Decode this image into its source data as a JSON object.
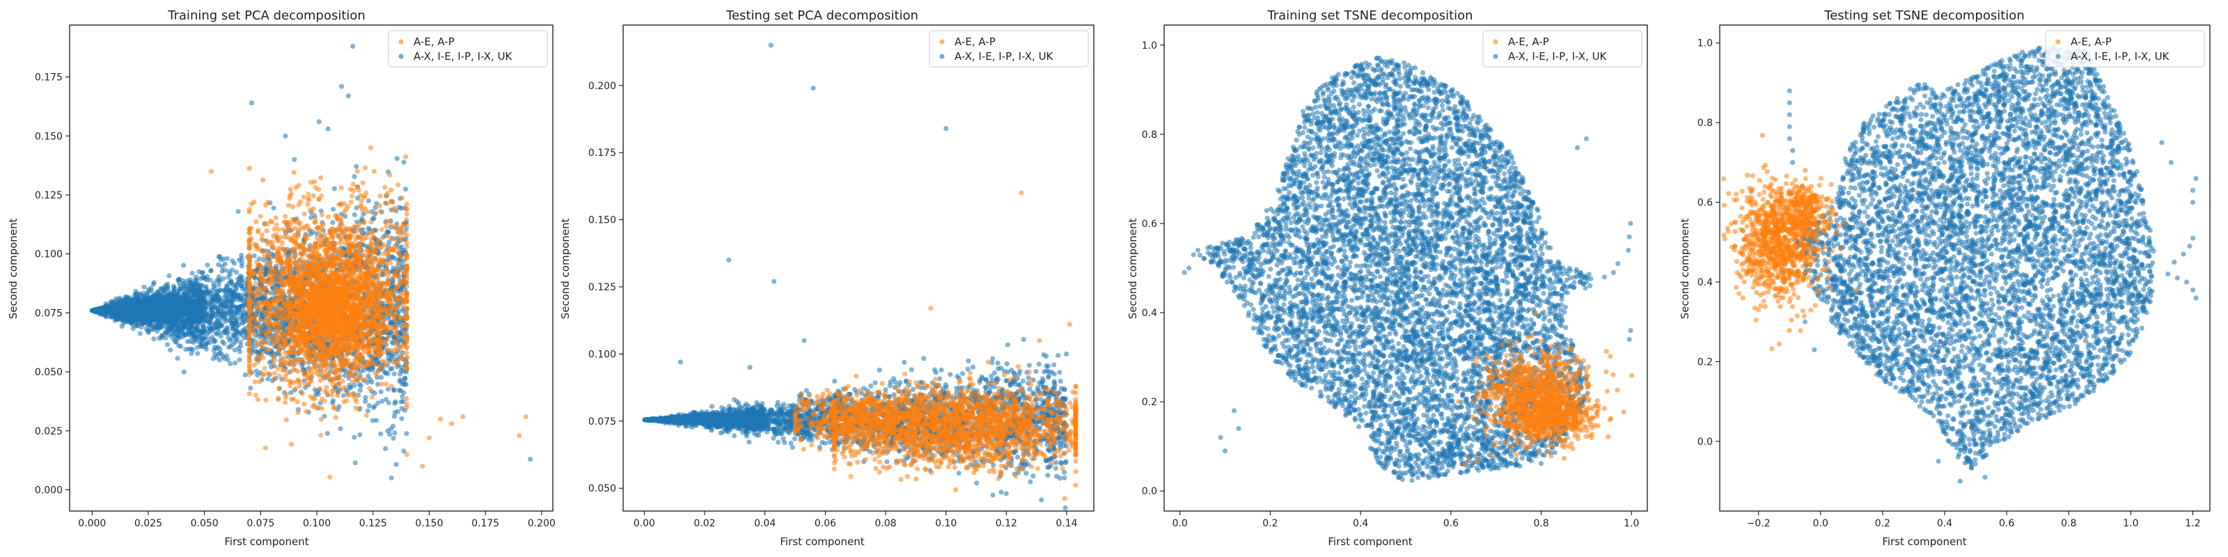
{
  "colors": {
    "orange": "#ff7f0e",
    "blue": "#1f77b4"
  },
  "chart_data": [
    {
      "type": "scatter",
      "title": "Training set PCA decomposition",
      "xlabel": "First component",
      "ylabel": "Second component",
      "xlim": [
        -0.01,
        0.205
      ],
      "ylim": [
        -0.009,
        0.197
      ],
      "xticks": [
        0.0,
        0.025,
        0.05,
        0.075,
        0.1,
        0.125,
        0.15,
        0.175,
        0.2
      ],
      "xtick_labels": [
        "0.000",
        "0.025",
        "0.050",
        "0.075",
        "0.100",
        "0.125",
        "0.150",
        "0.175",
        "0.200"
      ],
      "yticks": [
        0.0,
        0.025,
        0.05,
        0.075,
        0.1,
        0.125,
        0.15,
        0.175
      ],
      "ytick_labels": [
        "0.000",
        "0.025",
        "0.050",
        "0.075",
        "0.100",
        "0.125",
        "0.150",
        "0.175"
      ],
      "grid": false,
      "legend": "top-right",
      "series": [
        {
          "name": "A-E, A-P",
          "color": "#ff7f0e",
          "clusters": [
            {
              "shape": "rect",
              "cx": 0.105,
              "cy": 0.08,
              "rx": 0.035,
              "ry": 0.032,
              "n": 2400
            },
            {
              "shape": "rect",
              "cx": 0.108,
              "cy": 0.075,
              "rx": 0.02,
              "ry": 0.018,
              "n": 600
            }
          ],
          "points": [
            [
              0.155,
              0.03
            ],
            [
              0.16,
              0.028
            ],
            [
              0.165,
              0.031
            ],
            [
              0.15,
              0.022
            ],
            [
              0.193,
              0.031
            ],
            [
              0.19,
              0.023
            ],
            [
              0.147,
              0.01
            ],
            [
              0.14,
              0.015
            ],
            [
              0.053,
              0.135
            ],
            [
              0.124,
              0.145
            ],
            [
              0.118,
              0.135
            ],
            [
              0.072,
              0.122
            ]
          ]
        },
        {
          "name": "A-X, I-E, I-P, I-X, UK",
          "color": "#1f77b4",
          "clusters": [
            {
              "shape": "wedge",
              "x0": 0.0,
              "y0": 0.076,
              "x1": 0.14,
              "spread": 0.048,
              "n": 3200
            },
            {
              "shape": "wedge",
              "x0": 0.0,
              "y0": 0.076,
              "x1": 0.05,
              "spread": 0.016,
              "n": 900
            }
          ],
          "points": [
            [
              0.116,
              0.188
            ],
            [
              0.111,
              0.171
            ],
            [
              0.114,
              0.167
            ],
            [
              0.105,
              0.153
            ],
            [
              0.101,
              0.156
            ],
            [
              0.071,
              0.164
            ],
            [
              0.086,
              0.15
            ],
            [
              0.195,
              0.013
            ],
            [
              0.065,
              0.118
            ],
            [
              0.09,
              0.14
            ]
          ]
        }
      ]
    },
    {
      "type": "scatter",
      "title": "Testing set PCA decomposition",
      "xlabel": "First component",
      "ylabel": "Second component",
      "xlim": [
        -0.007,
        0.149
      ],
      "ylim": [
        0.0415,
        0.2225
      ],
      "xticks": [
        0.0,
        0.02,
        0.04,
        0.06,
        0.08,
        0.1,
        0.12,
        0.14
      ],
      "xtick_labels": [
        "0.00",
        "0.02",
        "0.04",
        "0.06",
        "0.08",
        "0.10",
        "0.12",
        "0.14"
      ],
      "yticks": [
        0.05,
        0.075,
        0.1,
        0.125,
        0.15,
        0.175,
        0.2
      ],
      "ytick_labels": [
        "0.050",
        "0.075",
        "0.100",
        "0.125",
        "0.150",
        "0.175",
        "0.200"
      ],
      "grid": false,
      "legend": "top-right",
      "series": [
        {
          "name": "A-E, A-P",
          "color": "#ff7f0e",
          "clusters": [
            {
              "shape": "rect",
              "cx": 0.103,
              "cy": 0.073,
              "rx": 0.04,
              "ry": 0.012,
              "n": 1800
            },
            {
              "shape": "rect",
              "cx": 0.07,
              "cy": 0.076,
              "rx": 0.02,
              "ry": 0.008,
              "n": 400
            }
          ],
          "points": [
            [
              0.125,
              0.16
            ],
            [
              0.141,
              0.111
            ],
            [
              0.095,
              0.117
            ],
            [
              0.131,
              0.105
            ],
            [
              0.114,
              0.097
            ],
            [
              0.108,
              0.093
            ]
          ]
        },
        {
          "name": "A-X, I-E, I-P, I-X, UK",
          "color": "#1f77b4",
          "clusters": [
            {
              "shape": "wedge",
              "x0": 0.0,
              "y0": 0.0755,
              "x1": 0.14,
              "spread": 0.022,
              "n": 2600
            },
            {
              "shape": "wedge",
              "x0": 0.0,
              "y0": 0.0755,
              "x1": 0.04,
              "spread": 0.004,
              "n": 900
            }
          ],
          "points": [
            [
              0.042,
              0.215
            ],
            [
              0.056,
              0.199
            ],
            [
              0.1,
              0.184
            ],
            [
              0.028,
              0.135
            ],
            [
              0.043,
              0.127
            ],
            [
              0.053,
              0.105
            ],
            [
              0.012,
              0.097
            ],
            [
              0.035,
              0.095
            ],
            [
              0.078,
              0.094
            ],
            [
              0.12,
              0.048
            ]
          ]
        }
      ]
    },
    {
      "type": "scatter",
      "title": "Training set TSNE decomposition",
      "xlabel": "First component",
      "ylabel": "Second component",
      "xlim": [
        -0.035,
        1.035
      ],
      "ylim": [
        -0.045,
        1.045
      ],
      "xticks": [
        0.0,
        0.2,
        0.4,
        0.6,
        0.8,
        1.0
      ],
      "xtick_labels": [
        "0.0",
        "0.2",
        "0.4",
        "0.6",
        "0.8",
        "1.0"
      ],
      "yticks": [
        0.0,
        0.2,
        0.4,
        0.6,
        0.8,
        1.0
      ],
      "ytick_labels": [
        "0.0",
        "0.2",
        "0.4",
        "0.6",
        "0.8",
        "1.0"
      ],
      "grid": false,
      "legend": "top-right",
      "series": [
        {
          "name": "A-E, A-P",
          "color": "#ff7f0e",
          "clusters": [
            {
              "shape": "ellipse",
              "cx": 0.8,
              "cy": 0.21,
              "rx": 0.1,
              "ry": 0.08,
              "n": 900
            },
            {
              "shape": "ellipse",
              "cx": 0.82,
              "cy": 0.16,
              "rx": 0.08,
              "ry": 0.04,
              "n": 300
            }
          ],
          "points": [
            [
              0.66,
              0.07
            ],
            [
              0.69,
              0.08
            ],
            [
              0.63,
              0.06
            ],
            [
              0.73,
              0.12
            ],
            [
              0.9,
              0.25
            ]
          ]
        },
        {
          "name": "A-X, I-E, I-P, I-X, UK",
          "color": "#1f77b4",
          "polygon": [
            [
              0.08,
              0.5
            ],
            [
              0.03,
              0.52
            ],
            [
              0.06,
              0.55
            ],
            [
              0.15,
              0.57
            ],
            [
              0.2,
              0.64
            ],
            [
              0.24,
              0.75
            ],
            [
              0.27,
              0.85
            ],
            [
              0.32,
              0.92
            ],
            [
              0.4,
              0.96
            ],
            [
              0.46,
              0.98
            ],
            [
              0.52,
              0.95
            ],
            [
              0.58,
              0.92
            ],
            [
              0.63,
              0.88
            ],
            [
              0.68,
              0.82
            ],
            [
              0.73,
              0.76
            ],
            [
              0.76,
              0.7
            ],
            [
              0.79,
              0.64
            ],
            [
              0.81,
              0.58
            ],
            [
              0.83,
              0.52
            ],
            [
              0.86,
              0.5
            ],
            [
              0.92,
              0.49
            ],
            [
              0.91,
              0.45
            ],
            [
              0.86,
              0.45
            ],
            [
              0.85,
              0.38
            ],
            [
              0.88,
              0.31
            ],
            [
              0.91,
              0.24
            ],
            [
              0.89,
              0.18
            ],
            [
              0.86,
              0.11
            ],
            [
              0.8,
              0.06
            ],
            [
              0.7,
              0.05
            ],
            [
              0.63,
              0.04
            ],
            [
              0.56,
              0.03
            ],
            [
              0.49,
              0.02
            ],
            [
              0.44,
              0.06
            ],
            [
              0.4,
              0.14
            ],
            [
              0.33,
              0.2
            ],
            [
              0.26,
              0.24
            ],
            [
              0.2,
              0.3
            ],
            [
              0.16,
              0.36
            ],
            [
              0.14,
              0.42
            ],
            [
              0.11,
              0.46
            ]
          ],
          "n": 7000,
          "points": [
            [
              0.995,
              0.57
            ],
            [
              0.998,
              0.6
            ],
            [
              0.993,
              0.54
            ],
            [
              0.995,
              0.34
            ],
            [
              0.998,
              0.36
            ],
            [
              0.94,
              0.48
            ],
            [
              0.96,
              0.49
            ],
            [
              0.97,
              0.51
            ],
            [
              0.02,
              0.5
            ],
            [
              0.01,
              0.49
            ],
            [
              0.03,
              0.53
            ],
            [
              0.04,
              0.54
            ],
            [
              0.12,
              0.18
            ],
            [
              0.13,
              0.14
            ],
            [
              0.1,
              0.09
            ],
            [
              0.09,
              0.12
            ],
            [
              0.88,
              0.77
            ],
            [
              0.9,
              0.79
            ]
          ]
        }
      ]
    },
    {
      "type": "scatter",
      "title": "Testing set TSNE decomposition",
      "xlabel": "First component",
      "ylabel": "Second component",
      "xlim": [
        -0.325,
        1.255
      ],
      "ylim": [
        -0.175,
        1.045
      ],
      "xticks": [
        -0.2,
        0.0,
        0.2,
        0.4,
        0.6,
        0.8,
        1.0,
        1.2
      ],
      "xtick_labels": [
        "−0.2",
        "0.0",
        "0.2",
        "0.4",
        "0.6",
        "0.8",
        "1.0",
        "1.2"
      ],
      "yticks": [
        0.0,
        0.2,
        0.4,
        0.6,
        0.8,
        1.0
      ],
      "ytick_labels": [
        "0.0",
        "0.2",
        "0.4",
        "0.6",
        "0.8",
        "1.0"
      ],
      "grid": false,
      "legend": "top-right",
      "series": [
        {
          "name": "A-E, A-P",
          "color": "#ff7f0e",
          "clusters": [
            {
              "shape": "ellipse",
              "cx": -0.14,
              "cy": 0.5,
              "rx": 0.12,
              "ry": 0.12,
              "n": 900
            },
            {
              "shape": "ellipse",
              "cx": -0.05,
              "cy": 0.58,
              "rx": 0.06,
              "ry": 0.05,
              "n": 200
            }
          ],
          "points": [
            [
              -0.25,
              0.36
            ],
            [
              -0.2,
              0.33
            ],
            [
              -0.24,
              0.42
            ]
          ]
        },
        {
          "name": "A-X, I-E, I-P, I-X, UK",
          "color": "#1f77b4",
          "polygon": [
            [
              -0.02,
              0.56
            ],
            [
              0.05,
              0.6
            ],
            [
              0.08,
              0.72
            ],
            [
              0.14,
              0.8
            ],
            [
              0.22,
              0.85
            ],
            [
              0.32,
              0.9
            ],
            [
              0.4,
              0.88
            ],
            [
              0.48,
              0.91
            ],
            [
              0.56,
              0.95
            ],
            [
              0.66,
              0.98
            ],
            [
              0.76,
              1.0
            ],
            [
              0.86,
              0.98
            ],
            [
              0.92,
              0.88
            ],
            [
              0.98,
              0.78
            ],
            [
              1.02,
              0.68
            ],
            [
              1.06,
              0.55
            ],
            [
              1.08,
              0.45
            ],
            [
              1.06,
              0.32
            ],
            [
              1.0,
              0.22
            ],
            [
              0.92,
              0.15
            ],
            [
              0.82,
              0.09
            ],
            [
              0.7,
              0.05
            ],
            [
              0.58,
              0.0
            ],
            [
              0.49,
              -0.07
            ],
            [
              0.42,
              -0.03
            ],
            [
              0.38,
              0.05
            ],
            [
              0.3,
              0.1
            ],
            [
              0.2,
              0.15
            ],
            [
              0.12,
              0.22
            ],
            [
              0.05,
              0.28
            ],
            [
              0.0,
              0.35
            ],
            [
              -0.05,
              0.42
            ],
            [
              -0.08,
              0.5
            ]
          ],
          "n": 6000,
          "points": [
            [
              -0.1,
              0.88
            ],
            [
              -0.1,
              0.85
            ],
            [
              -0.1,
              0.82
            ],
            [
              -0.1,
              0.79
            ],
            [
              -0.1,
              0.76
            ],
            [
              -0.09,
              0.73
            ],
            [
              -0.09,
              0.7
            ],
            [
              1.12,
              0.42
            ],
            [
              1.15,
              0.41
            ],
            [
              1.18,
              0.4
            ],
            [
              1.2,
              0.38
            ],
            [
              1.21,
              0.36
            ],
            [
              1.14,
              0.45
            ],
            [
              1.17,
              0.47
            ],
            [
              1.19,
              0.49
            ],
            [
              1.2,
              0.51
            ],
            [
              1.2,
              0.63
            ],
            [
              1.21,
              0.66
            ],
            [
              1.2,
              0.6
            ],
            [
              -0.02,
              0.23
            ],
            [
              -0.05,
              0.3
            ],
            [
              0.38,
              -0.05
            ],
            [
              0.45,
              -0.1
            ],
            [
              0.53,
              -0.09
            ],
            [
              1.1,
              0.75
            ],
            [
              1.13,
              0.7
            ]
          ]
        }
      ]
    }
  ]
}
